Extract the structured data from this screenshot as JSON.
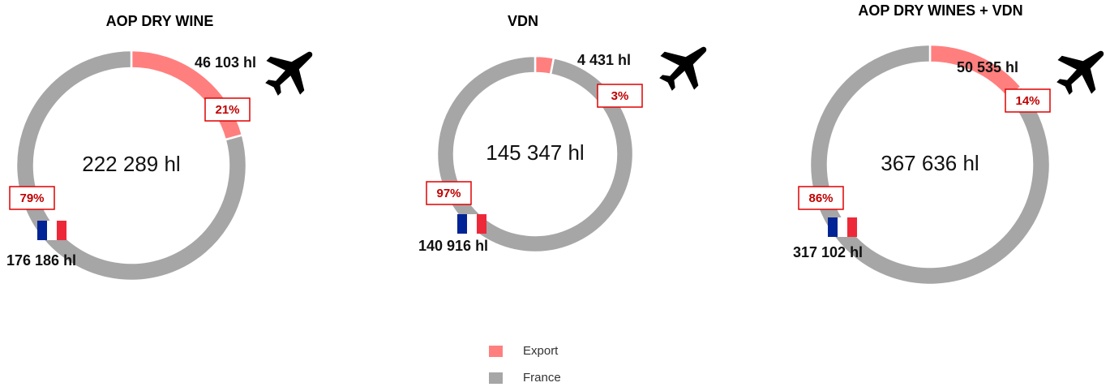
{
  "chart_data": [
    {
      "type": "donut",
      "title": "AOP DRY WINE",
      "categories": [
        "Export",
        "France"
      ],
      "values": [
        46103,
        176186
      ],
      "value_labels": [
        "46 103 hl",
        "176 186 hl"
      ],
      "percent_labels": [
        "21%",
        "79%"
      ],
      "center_label": "222 289 hl"
    },
    {
      "type": "donut",
      "title": "VDN",
      "categories": [
        "Export",
        "France"
      ],
      "values": [
        4431,
        140916
      ],
      "value_labels": [
        "4 431 hl",
        "140 916 hl"
      ],
      "percent_labels": [
        "3%",
        "97%"
      ],
      "center_label": "145 347 hl"
    },
    {
      "type": "donut",
      "title": "AOP DRY WINES + VDN",
      "categories": [
        "Export",
        "France"
      ],
      "values": [
        50535,
        317102
      ],
      "value_labels": [
        "50 535 hl",
        "317 102 hl"
      ],
      "percent_labels": [
        "14%",
        "86%"
      ],
      "center_label": "367 636 hl"
    }
  ],
  "legend": {
    "items": [
      {
        "name": "Export",
        "color": "#ff7f7f"
      },
      {
        "name": "France",
        "color": "#a6a6a6"
      }
    ]
  }
}
